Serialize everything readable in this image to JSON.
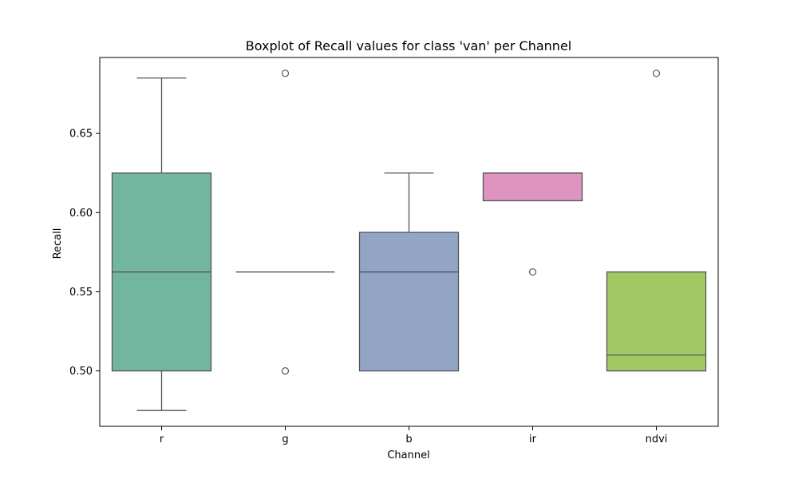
{
  "chart_data": {
    "type": "boxplot",
    "title": "Boxplot of Recall values for class 'van' per Channel",
    "xlabel": "Channel",
    "ylabel": "Recall",
    "ylim": [
      0.465,
      0.698
    ],
    "yticks": [
      0.5,
      0.55,
      0.6,
      0.65
    ],
    "ytick_labels": [
      "0.50",
      "0.55",
      "0.60",
      "0.65"
    ],
    "grid": false,
    "categories": [
      "r",
      "g",
      "b",
      "ir",
      "ndvi"
    ],
    "boxes": [
      {
        "category": "r",
        "whisker_low": 0.475,
        "q1": 0.5,
        "median": 0.5625,
        "q3": 0.625,
        "whisker_high": 0.685,
        "outliers": [],
        "color": "#73b6a0"
      },
      {
        "category": "g",
        "whisker_low": 0.5625,
        "q1": 0.5625,
        "median": 0.5625,
        "q3": 0.5625,
        "whisker_high": 0.5625,
        "outliers": [
          0.5,
          0.688
        ],
        "color": "#fc8d62"
      },
      {
        "category": "b",
        "whisker_low": 0.5,
        "q1": 0.5,
        "median": 0.5625,
        "q3": 0.5875,
        "whisker_high": 0.625,
        "outliers": [],
        "color": "#93a5c5"
      },
      {
        "category": "ir",
        "whisker_low": 0.6075,
        "q1": 0.6075,
        "median": 0.625,
        "q3": 0.625,
        "whisker_high": 0.625,
        "outliers": [
          0.5625
        ],
        "color": "#dd94bf"
      },
      {
        "category": "ndvi",
        "whisker_low": 0.5,
        "q1": 0.5,
        "median": 0.51,
        "q3": 0.5625,
        "whisker_high": 0.5625,
        "outliers": [
          0.688
        ],
        "color": "#a1c963"
      }
    ],
    "line_color": "#555555",
    "axis_color": "#000000"
  }
}
